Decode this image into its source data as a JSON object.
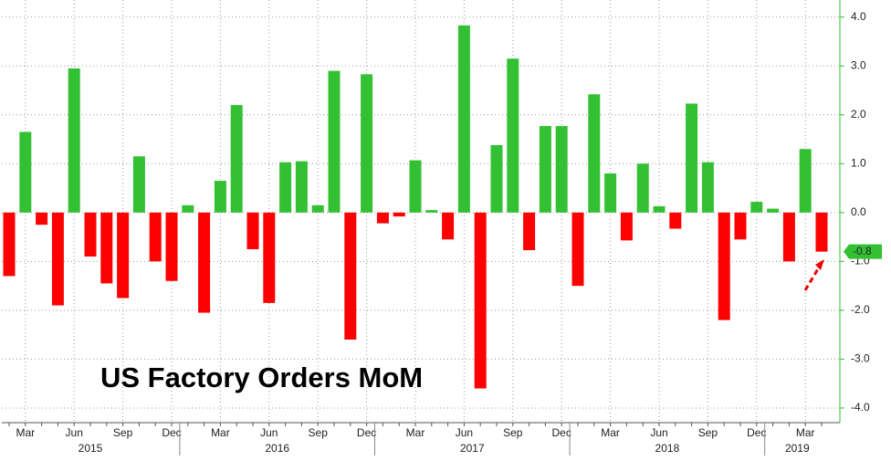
{
  "chart_data": {
    "type": "bar",
    "title": "US Factory Orders MoM",
    "categories": [
      null,
      "Mar",
      null,
      null,
      "Jun",
      null,
      null,
      "Sep",
      null,
      null,
      "Dec",
      null,
      null,
      "Mar",
      null,
      null,
      "Jun",
      null,
      null,
      "Sep",
      null,
      null,
      "Dec",
      null,
      null,
      "Mar",
      null,
      null,
      "Jun",
      null,
      null,
      "Sep",
      null,
      null,
      "Dec",
      null,
      null,
      "Mar",
      null,
      null,
      "Jun",
      null,
      null,
      "Sep",
      null,
      null,
      "Dec",
      null,
      null,
      "Mar",
      null
    ],
    "values": [
      -1.3,
      1.65,
      -0.25,
      -1.9,
      2.95,
      -0.9,
      -1.45,
      -1.75,
      1.15,
      -1.0,
      -1.4,
      0.15,
      -2.05,
      0.65,
      2.2,
      -0.75,
      -1.85,
      1.03,
      1.05,
      0.15,
      2.9,
      -2.6,
      2.83,
      -0.22,
      -0.08,
      1.07,
      0.05,
      -0.55,
      3.83,
      -3.6,
      1.38,
      3.15,
      -0.77,
      1.77,
      1.77,
      -1.5,
      2.42,
      0.8,
      -0.57,
      1.0,
      0.13,
      -0.33,
      2.23,
      1.03,
      -2.2,
      -0.55,
      0.22,
      0.08,
      -1.0,
      1.3,
      -0.8
    ],
    "x_groups": [
      {
        "label": "2015",
        "count": 11
      },
      {
        "label": "2016",
        "count": 12
      },
      {
        "label": "2017",
        "count": 12
      },
      {
        "label": "2018",
        "count": 12
      },
      {
        "label": "2019",
        "count": 4
      }
    ],
    "positive_color": "#33c133",
    "negative_color": "#ff0000",
    "ylim": [
      -4.3,
      4.35
    ],
    "yticks": [
      {
        "value": -4,
        "label": "-4.0"
      },
      {
        "value": -3,
        "label": "-3.0"
      },
      {
        "value": -2,
        "label": "-2.0"
      },
      {
        "value": -1,
        "label": "-1.0"
      },
      {
        "value": 0,
        "label": "0.0"
      },
      {
        "value": 1,
        "label": "1.0"
      },
      {
        "value": 2,
        "label": "2.0"
      },
      {
        "value": 3,
        "label": "3.0"
      },
      {
        "value": 4,
        "label": "4.0"
      }
    ],
    "grid": true
  }
}
